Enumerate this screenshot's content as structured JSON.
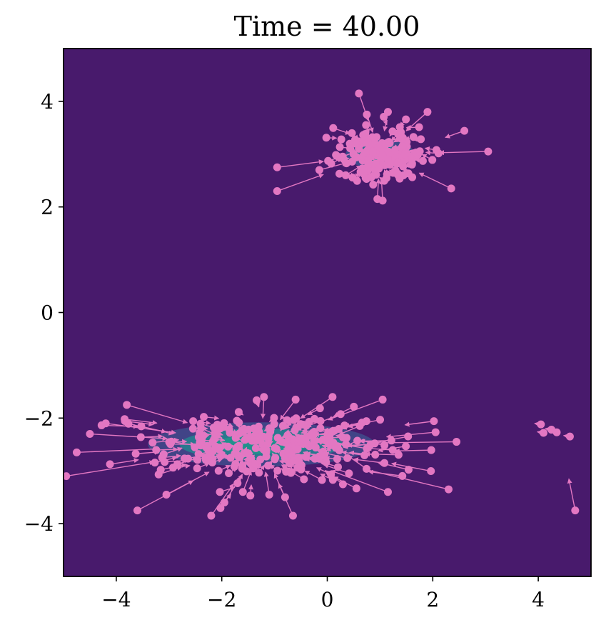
{
  "chart_data": {
    "type": "scatter",
    "title": "Time = 40.00",
    "xlabel": "",
    "ylabel": "",
    "xlim": [
      -5,
      5
    ],
    "ylim": [
      -5,
      5
    ],
    "xticks": [
      -4,
      -2,
      0,
      2,
      4
    ],
    "yticks": [
      -4,
      -2,
      0,
      2,
      4
    ],
    "xtick_labels": [
      "−4",
      "−2",
      "0",
      "2",
      "4"
    ],
    "ytick_labels": [
      "−4",
      "−2",
      "0",
      "2",
      "4"
    ],
    "grid": false,
    "background_color": "#481a6c",
    "particle_color": "#e377c2",
    "density_components": [
      {
        "cx": 1.0,
        "cy": 3.0,
        "sx": 0.65,
        "sy": 0.28,
        "levels": [
          {
            "rel": 1.0,
            "color": "#3d4a8a"
          },
          {
            "rel": 0.7,
            "color": "#2d6b8e"
          },
          {
            "rel": 0.45,
            "color": "#22908c"
          },
          {
            "rel": 0.25,
            "color": "#35b779"
          },
          {
            "rel": 0.08,
            "color": "#bddf26"
          }
        ]
      },
      {
        "cx": -1.25,
        "cy": -2.5,
        "sx": 2.15,
        "sy": 0.42,
        "levels": [
          {
            "rel": 1.0,
            "color": "#414487"
          },
          {
            "rel": 0.72,
            "color": "#2a788e"
          },
          {
            "rel": 0.42,
            "color": "#21918c"
          }
        ]
      }
    ],
    "particles_top": {
      "center": [
        1.0,
        3.0
      ],
      "count": 170,
      "points": [
        [
          0.6,
          4.15
        ],
        [
          0.75,
          3.75
        ],
        [
          1.15,
          3.8
        ],
        [
          1.9,
          3.8
        ],
        [
          -0.95,
          2.75
        ],
        [
          -0.95,
          2.3
        ],
        [
          3.05,
          3.05
        ],
        [
          2.35,
          2.35
        ],
        [
          0.95,
          2.15
        ],
        [
          1.05,
          2.12
        ],
        [
          0.35,
          2.6
        ],
        [
          -0.15,
          2.7
        ]
      ]
    },
    "particles_bottom": {
      "center": [
        -1.25,
        -2.5
      ],
      "count": 260,
      "points": [
        [
          -3.6,
          -3.75
        ],
        [
          -2.2,
          -3.85
        ],
        [
          -0.65,
          -3.85
        ],
        [
          -1.95,
          -3.6
        ],
        [
          -0.8,
          -3.5
        ],
        [
          -1.1,
          -3.45
        ],
        [
          -1.6,
          -3.4
        ],
        [
          -3.05,
          -3.45
        ],
        [
          1.15,
          -3.4
        ],
        [
          2.3,
          -3.35
        ],
        [
          -4.2,
          -2.1
        ],
        [
          -4.5,
          -2.3
        ],
        [
          -4.75,
          -2.65
        ],
        [
          -4.95,
          -3.1
        ],
        [
          -1.2,
          -1.6
        ],
        [
          -0.6,
          -1.65
        ],
        [
          0.1,
          -1.6
        ],
        [
          1.05,
          -1.65
        ],
        [
          -3.8,
          -1.75
        ],
        [
          2.45,
          -2.45
        ]
      ]
    },
    "particles_right": {
      "points": [
        [
          4.05,
          -2.12
        ],
        [
          4.1,
          -2.28
        ],
        [
          4.25,
          -2.22
        ],
        [
          4.35,
          -2.27
        ],
        [
          4.6,
          -2.35
        ],
        [
          4.7,
          -3.75
        ]
      ]
    }
  }
}
